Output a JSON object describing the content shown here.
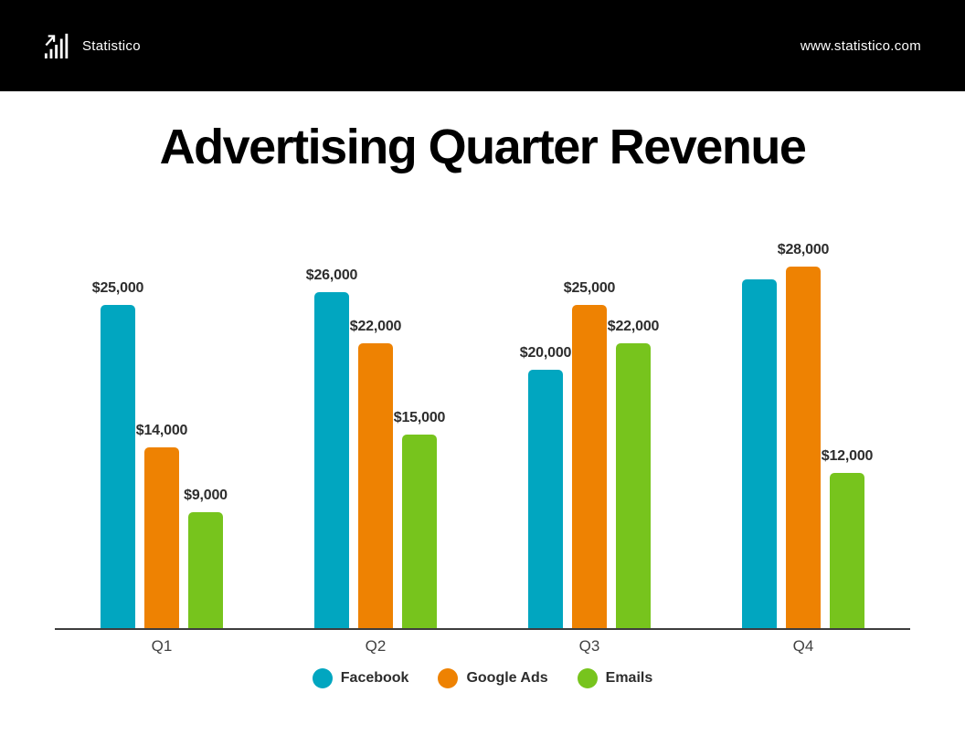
{
  "header": {
    "brand": "Statistico",
    "website": "www.statistico.com",
    "logo_icon": "bar-chart-arrow-icon"
  },
  "title": "Advertising Quarter Revenue",
  "colors": {
    "facebook": "#01A6C0",
    "google_ads": "#EE8202",
    "emails": "#77C41D",
    "header_bg": "#000000",
    "axis": "#3d3d3d",
    "value_label_text": "#2d2d2d",
    "tick_text": "#414141",
    "background": "#ffffff"
  },
  "chart_data": {
    "type": "bar",
    "title": "Advertising Quarter Revenue",
    "categories": [
      "Q1",
      "Q2",
      "Q3",
      "Q4"
    ],
    "series": [
      {
        "name": "Facebook",
        "color": "#01A6C0",
        "values": [
          25000,
          26000,
          20000,
          27000
        ],
        "value_labels": [
          "$25,000",
          "$26,000",
          "$20,000",
          ""
        ]
      },
      {
        "name": "Google Ads",
        "color": "#EE8202",
        "values": [
          14000,
          22000,
          25000,
          28000
        ],
        "value_labels": [
          "$14,000",
          "$22,000",
          "$25,000",
          "$28,000"
        ]
      },
      {
        "name": "Emails",
        "color": "#77C41D",
        "values": [
          9000,
          15000,
          22000,
          12000
        ],
        "value_labels": [
          "$9,000",
          "$15,000",
          "$22,000",
          "$12,000"
        ]
      }
    ],
    "xlabel": "",
    "ylabel": "",
    "ylim": [
      0,
      30000
    ],
    "grid": false,
    "legend_position": "bottom",
    "legend": [
      "Facebook",
      "Google Ads",
      "Emails"
    ]
  }
}
